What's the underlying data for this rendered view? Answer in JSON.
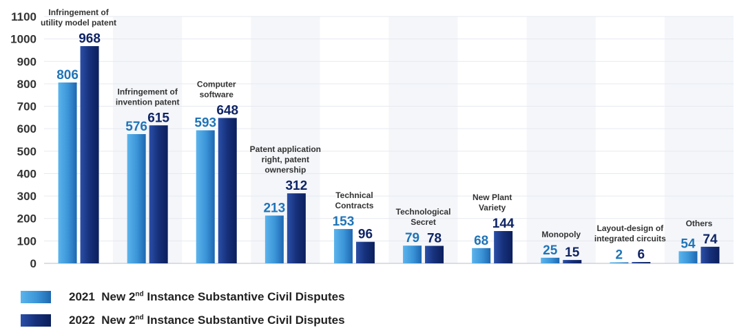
{
  "chart_data": {
    "type": "bar",
    "categories": [
      [
        "Infringement of",
        "utility model  patent"
      ],
      [
        "Infringement of",
        "invention patent"
      ],
      [
        "Computer",
        "software"
      ],
      [
        "Patent application",
        "right, patent",
        "ownership"
      ],
      [
        "Technical",
        "Contracts"
      ],
      [
        "Technological",
        "Secret"
      ],
      [
        "New Plant",
        "Variety"
      ],
      [
        "Monopoly"
      ],
      [
        "Layout-design of",
        "integrated circuits"
      ],
      [
        "Others"
      ]
    ],
    "series": [
      {
        "name": "2021  New 2nd Instance Substantive Civil Disputes",
        "values": [
          806,
          576,
          593,
          213,
          153,
          79,
          68,
          25,
          2,
          54
        ],
        "color": "#3a93d6"
      },
      {
        "name": "2022  New 2nd Instance Substantive Civil Disputes",
        "values": [
          968,
          615,
          648,
          312,
          96,
          78,
          144,
          15,
          6,
          74
        ],
        "color": "#16307a"
      }
    ],
    "ylim": [
      0,
      1100
    ],
    "yticks": [
      0,
      100,
      200,
      300,
      400,
      500,
      600,
      700,
      800,
      900,
      1000,
      1100
    ],
    "label_colors": [
      "#1f74b8",
      "#0f2465"
    ],
    "grid": true,
    "legend_position": "bottom-left"
  },
  "legend": [
    {
      "year": "2021",
      "pre": "New 2",
      "sup": "nd",
      "post": " Instance Substantive Civil Disputes"
    },
    {
      "year": "2022",
      "pre": "New 2",
      "sup": "nd",
      "post": " Instance Substantive Civil Disputes"
    }
  ]
}
